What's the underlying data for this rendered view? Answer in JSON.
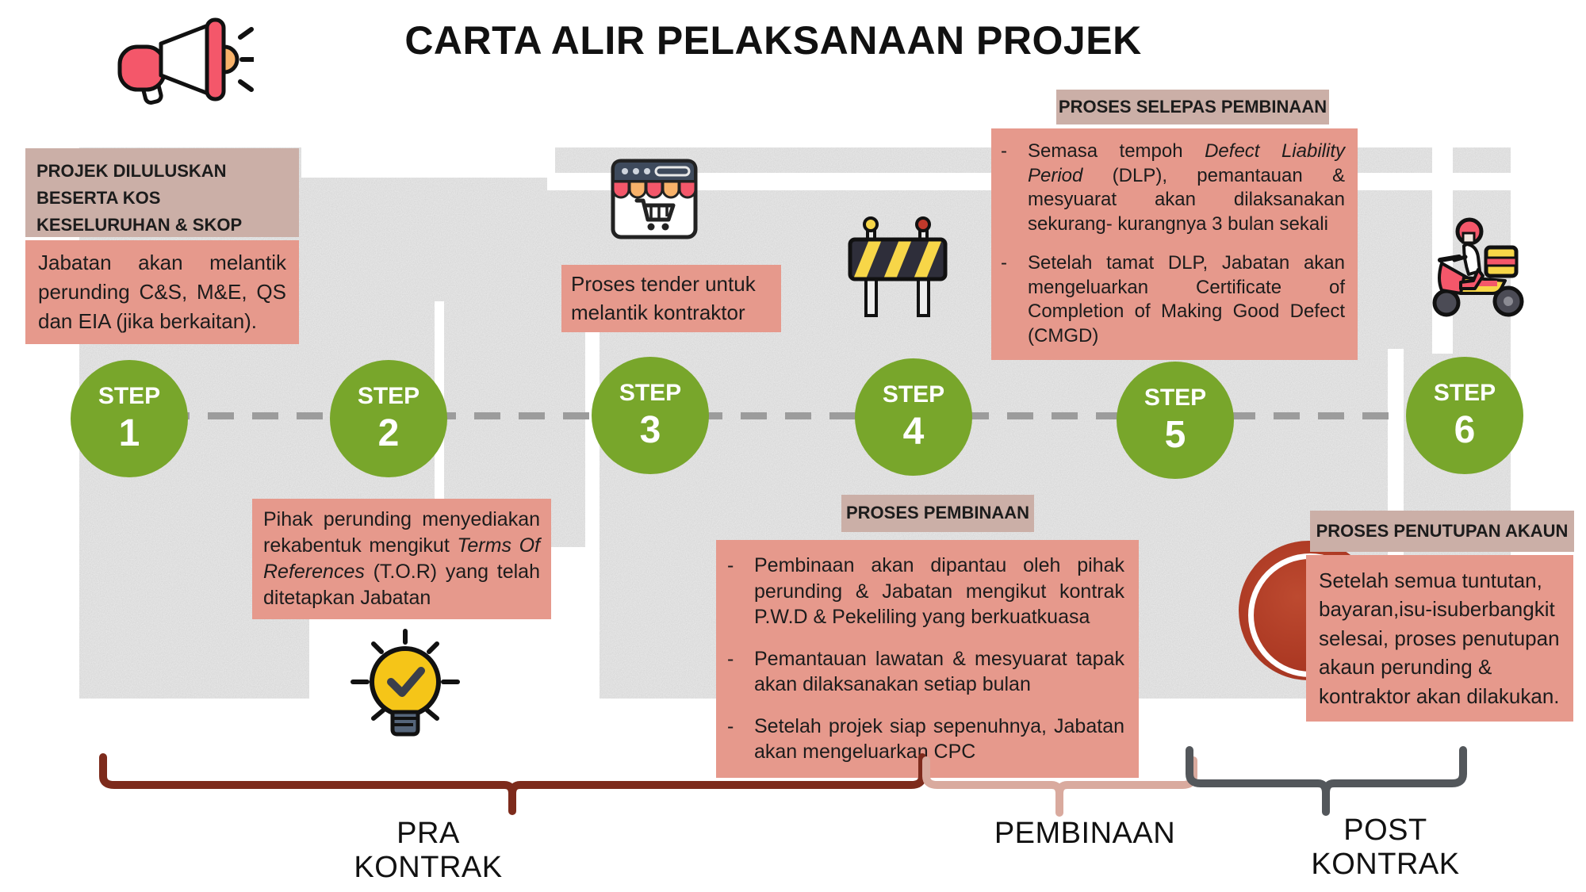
{
  "title": "CARTA ALIR PELAKSANAAN PROJEK",
  "dash": "-",
  "colors": {
    "salmon": "#E6998C",
    "tan_header": "#CBAFA7",
    "step_green": "#78A62B",
    "road_gray": "#D5D5D5",
    "dash_gray": "#9C9C9C",
    "brace_dark_red": "#7D2B1C",
    "brace_pink": "#D9AA9E",
    "brace_gray": "#53575B",
    "red_circle": "#AD3A24"
  },
  "icons": {
    "megaphone": "megaphone-icon",
    "storefront": "storefront-cart-icon",
    "roadblock": "roadblock-barrier-icon",
    "lightbulb": "lightbulb-check-icon",
    "scooter": "delivery-scooter-icon"
  },
  "steps": [
    {
      "label": "STEP",
      "number": "1"
    },
    {
      "label": "STEP",
      "number": "2"
    },
    {
      "label": "STEP",
      "number": "3"
    },
    {
      "label": "STEP",
      "number": "4"
    },
    {
      "label": "STEP",
      "number": "5"
    },
    {
      "label": "STEP",
      "number": "6"
    }
  ],
  "boxes": {
    "step1_header": "PROJEK DILULUSKAN BESERTA KOS KESELURUHAN & SKOP KERJA",
    "step1_body": "Jabatan akan melantik perunding C&S, M&E, QS dan EIA (jika berkaitan).",
    "step2_body": [
      {
        "t": "Pihak perunding menyediakan rekabentuk mengikut "
      },
      {
        "t": "Terms Of References",
        "i": true
      },
      {
        "t": " (T.O.R) yang telah ditetapkan Jabatan"
      }
    ],
    "step3_body": "Proses tender untuk melantik kontraktor",
    "step4_header": "PROSES PEMBINAAN",
    "step4_bullets": [
      [
        {
          "t": "Pembinaan akan dipantau oleh pihak perunding & Jabatan mengikut kontrak P.W.D  &  Pekeliling yang berkuatkuasa"
        }
      ],
      [
        {
          "t": "Pemantauan  lawatan  & mesyuarat tapak akan dilaksanakan setiap bulan"
        }
      ],
      [
        {
          "t": "Setelah projek siap sepenuhnya, Jabatan akan mengeluarkan CPC"
        }
      ]
    ],
    "step5_header": "PROSES SELEPAS PEMBINAAN",
    "step5_bullets": [
      [
        {
          "t": "Semasa tempoh "
        },
        {
          "t": "Defect Liability Period",
          "i": true
        },
        {
          "t": " (DLP), pemantauan & mesyuarat akan dilaksanakan sekurang- kurangnya 3 bulan sekali"
        }
      ],
      [
        {
          "t": "Setelah tamat DLP, Jabatan akan mengeluarkan Certificate of Completion of Making Good Defect (CMGD)"
        }
      ]
    ],
    "step6_header": "PROSES PENUTUPAN AKAUN",
    "step6_body": "Setelah semua tuntutan, bayaran,isu-isuberbangkit selesai, proses penutupan akaun perunding & kontraktor akan dilakukan."
  },
  "phases": [
    {
      "label": "PRA KONTRAK"
    },
    {
      "label": "PEMBINAAN"
    },
    {
      "label": "POST KONTRAK"
    }
  ]
}
